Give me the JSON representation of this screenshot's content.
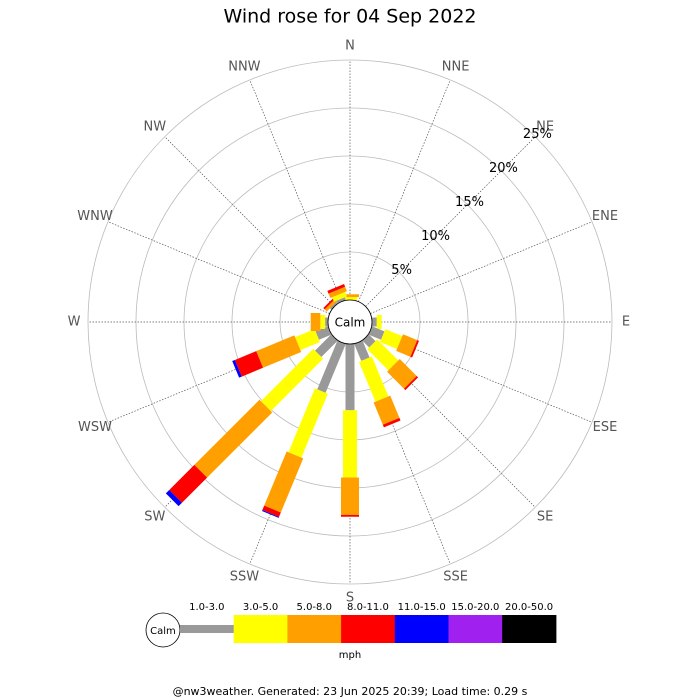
{
  "chart_data": {
    "type": "windrose",
    "title": "Wind rose for 04 Sep 2022",
    "directions": [
      "N",
      "NNE",
      "NE",
      "ENE",
      "E",
      "ESE",
      "SE",
      "SSE",
      "S",
      "SSW",
      "SW",
      "WSW",
      "W",
      "WNW",
      "NW",
      "NNW"
    ],
    "rlim": [
      0,
      25
    ],
    "rticks": [
      {
        "value": 5,
        "label": "5%"
      },
      {
        "value": 10,
        "label": "10%"
      },
      {
        "value": 15,
        "label": "15%"
      },
      {
        "value": 20,
        "label": "20%"
      },
      {
        "value": 25,
        "label": "25%"
      }
    ],
    "calm_label": "Calm",
    "unit": "mph",
    "series": [
      {
        "name": "1.0-3.0",
        "color": "#999999",
        "values": [
          0,
          0,
          0,
          0,
          0.5,
          1.4,
          1.0,
          1.9,
          6.9,
          5.5,
          2.4,
          1.4,
          0.3,
          0,
          0.2,
          0.3
        ]
      },
      {
        "name": "3.0-5.0",
        "color": "#ffff00",
        "values": [
          0.3,
          0,
          0,
          0,
          0.5,
          1.9,
          3.1,
          4.5,
          7.0,
          7.2,
          7.7,
          2.2,
          0.5,
          0,
          0,
          0.5
        ]
      },
      {
        "name": "5.0-8.0",
        "color": "#ffa000",
        "values": [
          0.3,
          0,
          0,
          0,
          0,
          1.6,
          2.5,
          2.5,
          3.9,
          6.1,
          9.6,
          4.3,
          1.0,
          0,
          0.3,
          0.5
        ]
      },
      {
        "name": "8.0-11.0",
        "color": "#ff0000",
        "values": [
          0,
          0,
          0,
          0,
          0,
          0.2,
          0.2,
          0.3,
          0.2,
          0.5,
          3.7,
          2.4,
          0,
          0,
          0.2,
          0.3
        ]
      },
      {
        "name": "11.0-15.0",
        "color": "#0000ff",
        "values": [
          0,
          0,
          0,
          0,
          0,
          0,
          0,
          0,
          0,
          0.1,
          0.5,
          0.3,
          0,
          0,
          0,
          0
        ]
      },
      {
        "name": "15.0-20.0",
        "color": "#a020f0",
        "values": [
          0,
          0,
          0,
          0,
          0,
          0,
          0,
          0,
          0,
          0,
          0,
          0,
          0,
          0,
          0,
          0
        ]
      },
      {
        "name": "20.0-50.0",
        "color": "#000000",
        "values": [
          0,
          0,
          0,
          0,
          0,
          0,
          0,
          0,
          0,
          0,
          0,
          0,
          0,
          0,
          0,
          0
        ]
      }
    ],
    "footer": "@nw3weather. Generated: 23 Jun 2025 20:39; Load time: 0.29 s"
  }
}
